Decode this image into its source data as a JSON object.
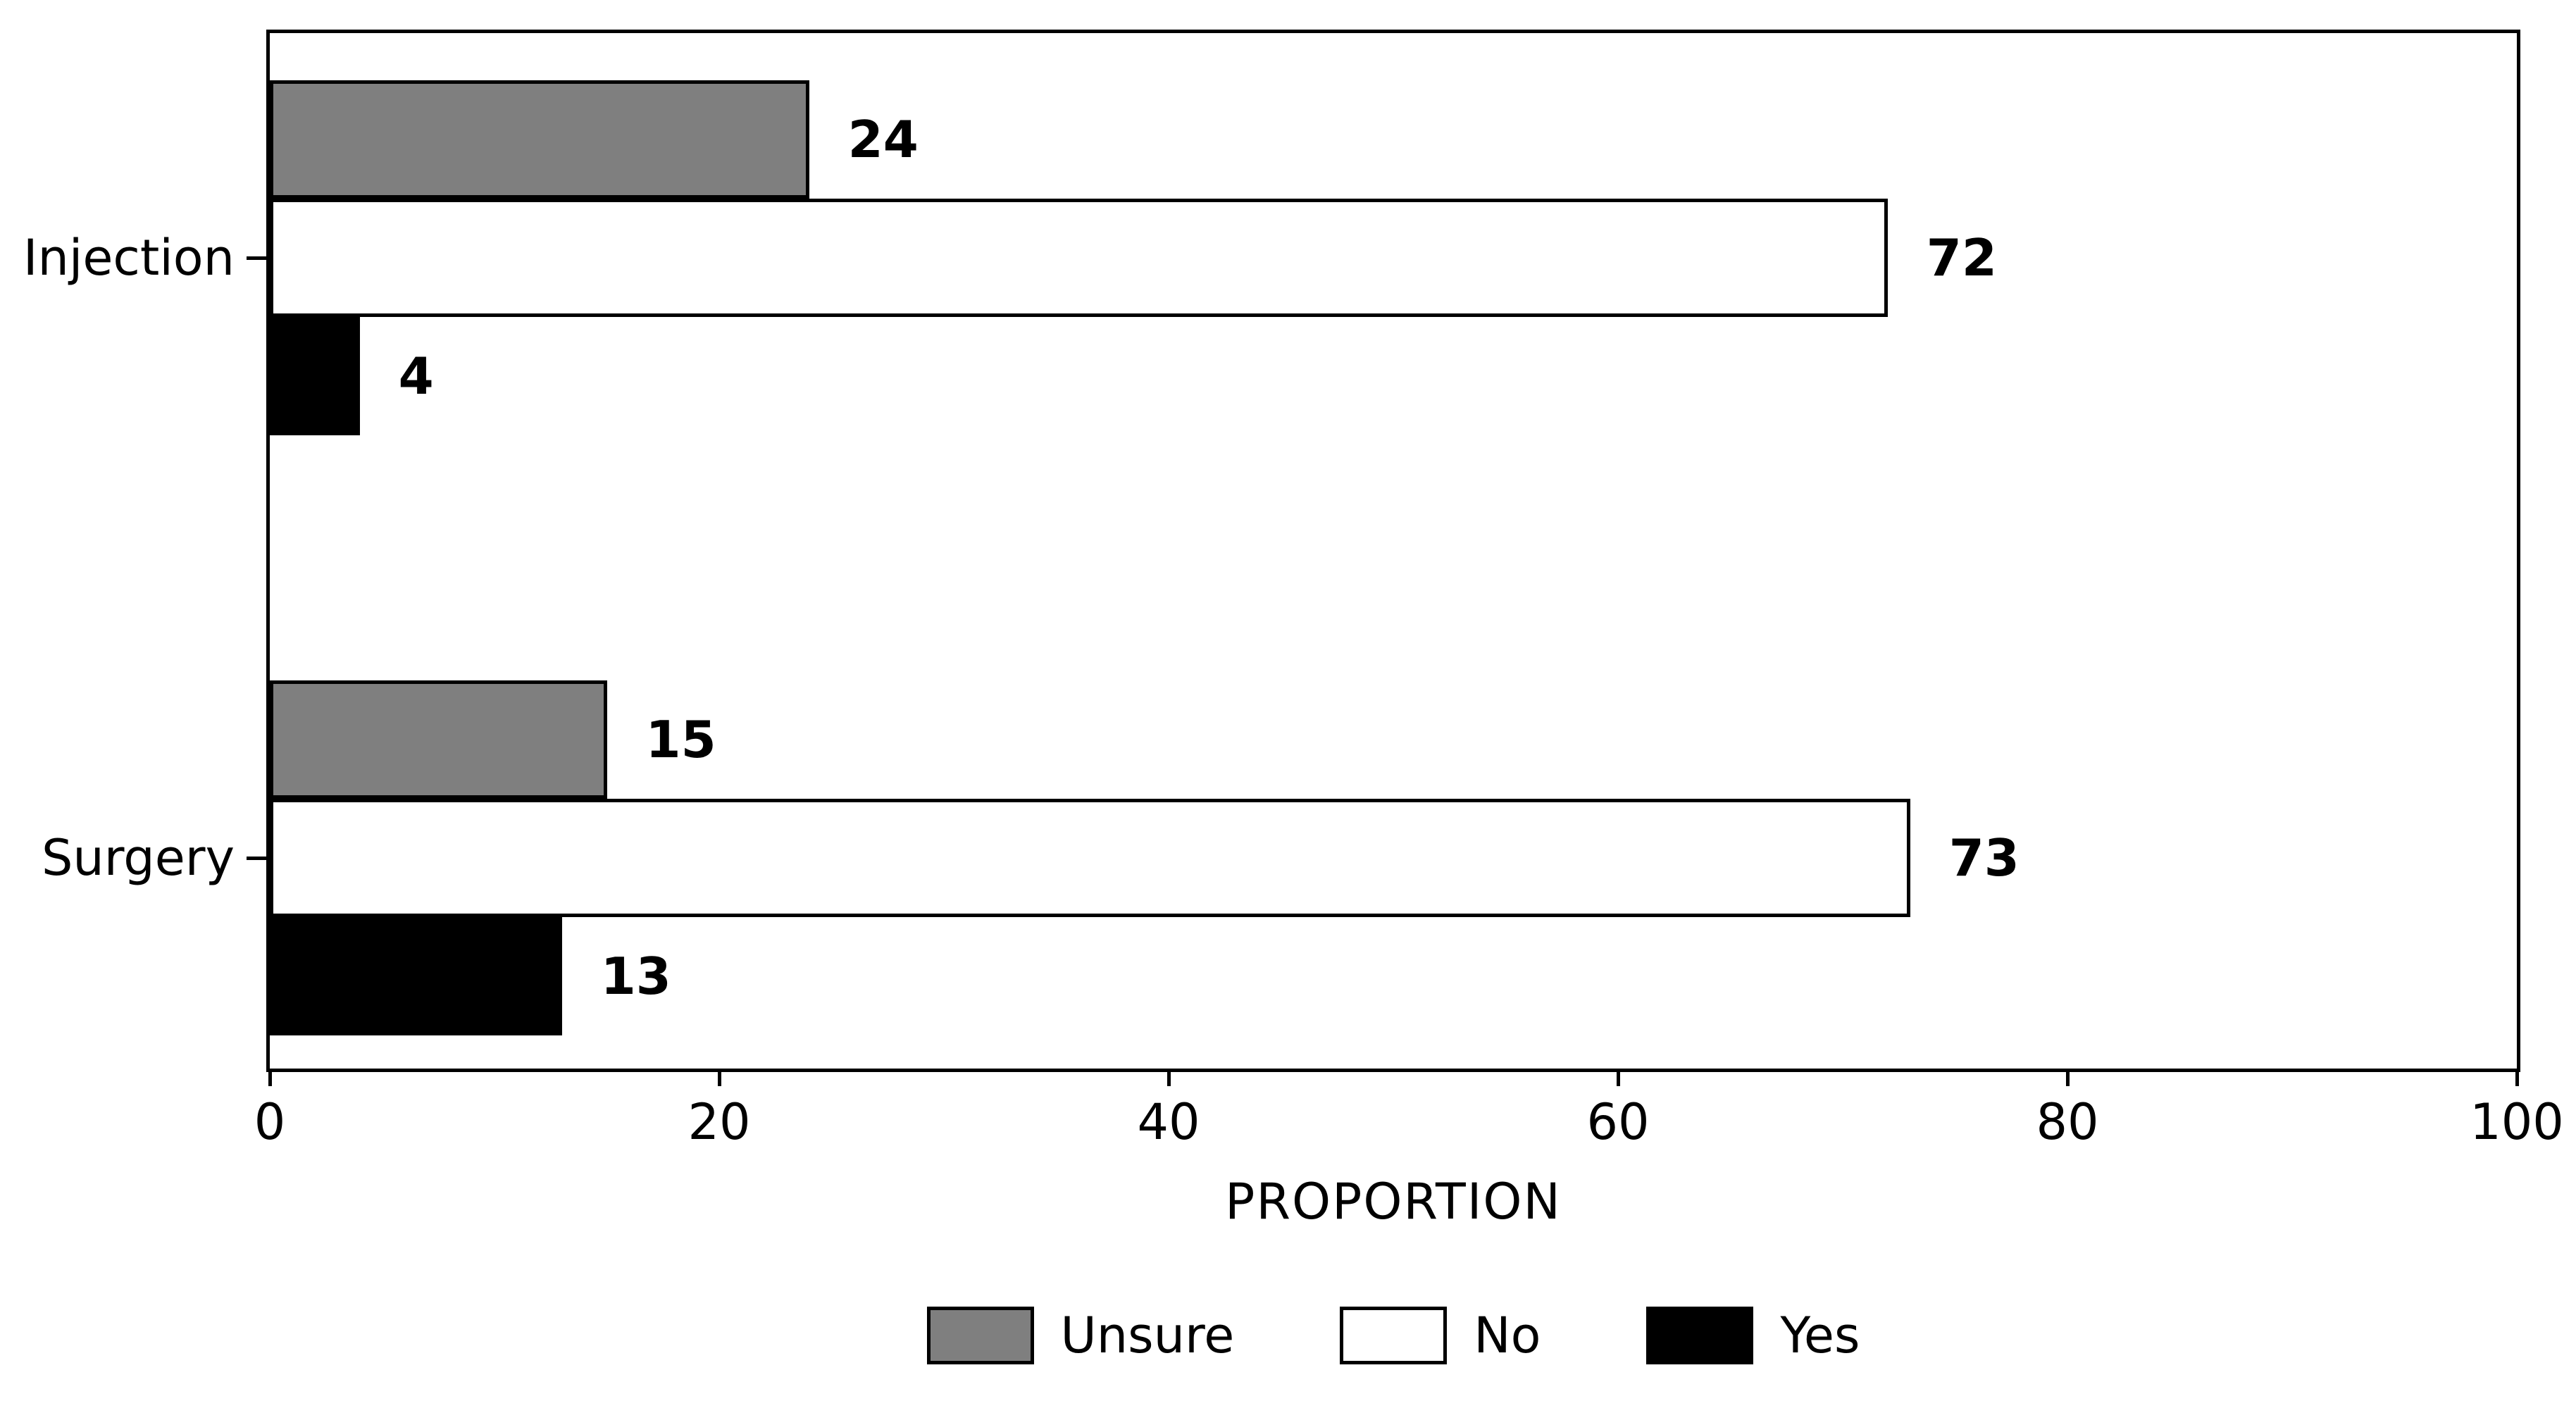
{
  "chart_data": {
    "type": "bar",
    "orientation": "horizontal",
    "categories": [
      "Injection",
      "Surgery"
    ],
    "series": [
      {
        "name": "Unsure",
        "color": "#7f7f7f",
        "values": [
          24,
          15
        ]
      },
      {
        "name": "No",
        "color": "#ffffff",
        "values": [
          72,
          73
        ]
      },
      {
        "name": "Yes",
        "color": "#000000",
        "values": [
          4,
          13
        ]
      }
    ],
    "xlabel": "PROPORTION",
    "xlim": [
      0,
      100
    ],
    "xticks": [
      0,
      20,
      40,
      60,
      80,
      100
    ],
    "bar_edge_color": "#000000",
    "value_labels_shown": true,
    "grid": false,
    "legend_position": "bottom",
    "legend_entries": [
      "Unsure",
      "No",
      "Yes"
    ]
  }
}
